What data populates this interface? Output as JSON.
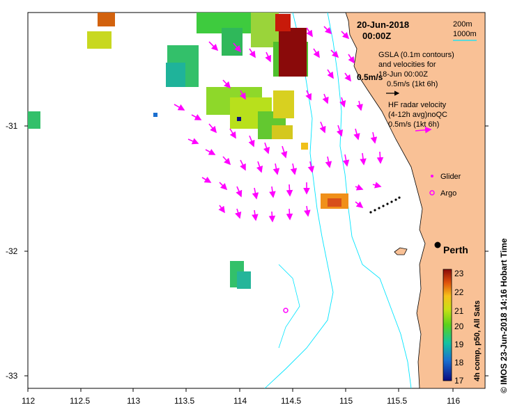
{
  "map": {
    "date": "20-Jun-2018",
    "time": "00:00Z",
    "legend_depth": [
      "200m",
      "1000m"
    ],
    "gsla_note": [
      "GSLA (0.1m contours)",
      "and velocities for",
      "18-Jun 00:00Z",
      "0.5m/s (1kt 6h)"
    ],
    "gsla_label": "0.5m/s",
    "hf_note": [
      "HF radar velocity",
      "(4-12h avg)noQC",
      "0.5m/s (1kt 6h)"
    ],
    "glider_label": "Glider",
    "argo_label": "Argo",
    "city_label": "Perth",
    "colorbar_title": "4h comp, p50, All Sats",
    "colorbar_ticks": [
      "23",
      "22",
      "21",
      "20",
      "19",
      "18",
      "17"
    ],
    "credit": "© IMOS 23-Jun-2018 14:16 Hobart Time",
    "x_ticks": [
      "112",
      "112.5",
      "113",
      "113.5",
      "114",
      "114.5",
      "115",
      "115.5",
      "116"
    ],
    "y_ticks": [
      "-31",
      "-32",
      "-33"
    ],
    "colors": {
      "land": "#f9c196",
      "arrows": "#ff00ff",
      "bathy": "#00e5ff",
      "glider": "#ff00ff",
      "argo": "#ff00ff"
    }
  }
}
